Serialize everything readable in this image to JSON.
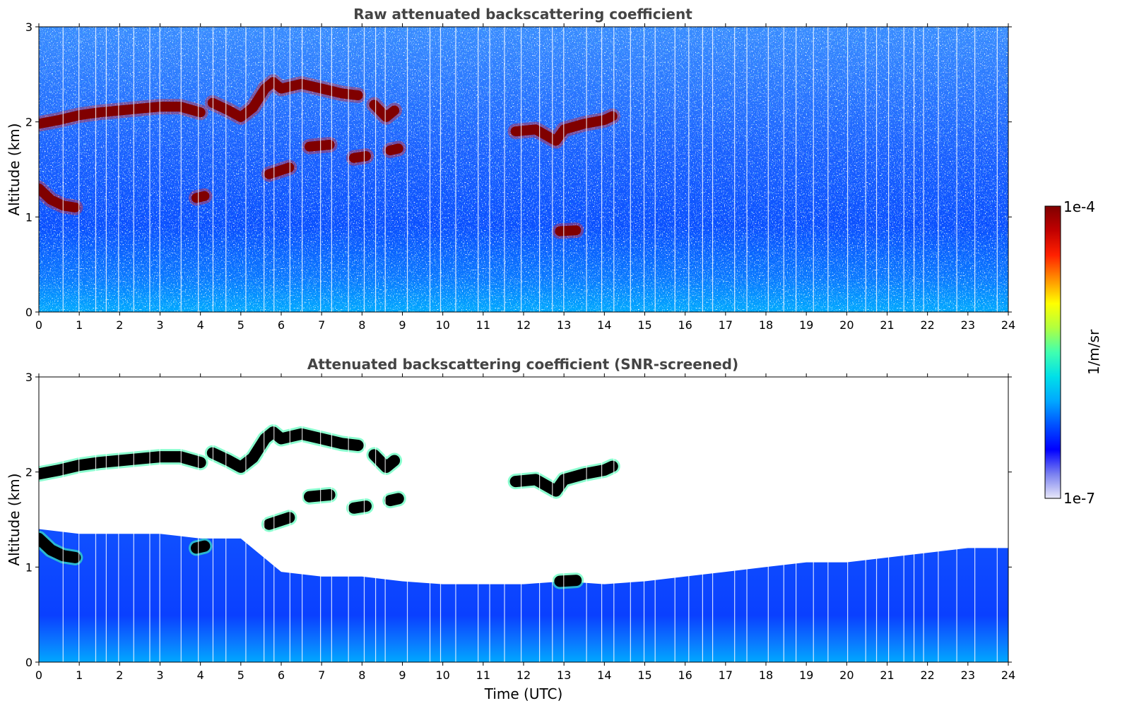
{
  "chart_data": [
    {
      "type": "heatmap",
      "title": "Raw attenuated backscattering coefficient",
      "xlabel": "",
      "ylabel": "Altitude (km)",
      "xlim": [
        0,
        24
      ],
      "ylim": [
        0,
        3
      ],
      "xticks": [
        0,
        1,
        2,
        3,
        4,
        5,
        6,
        7,
        8,
        9,
        10,
        11,
        12,
        13,
        14,
        15,
        16,
        17,
        18,
        19,
        20,
        21,
        22,
        23,
        24
      ],
      "yticks": [
        0,
        1,
        2,
        3
      ],
      "screened": false,
      "cloud_layers": [
        {
          "x": [
            0.0,
            0.5,
            1.0,
            1.5,
            2.0,
            2.5,
            3.0,
            3.5,
            4.0
          ],
          "y": [
            1.98,
            2.02,
            2.07,
            2.1,
            2.12,
            2.14,
            2.16,
            2.16,
            2.1
          ]
        },
        {
          "x": [
            4.3,
            4.7,
            5.0,
            5.3,
            5.6,
            5.8,
            6.0,
            6.5,
            7.0,
            7.5,
            7.9
          ],
          "y": [
            2.2,
            2.12,
            2.05,
            2.15,
            2.35,
            2.42,
            2.35,
            2.4,
            2.35,
            2.3,
            2.28
          ]
        },
        {
          "x": [
            8.3,
            8.6,
            8.8
          ],
          "y": [
            2.18,
            2.05,
            2.12
          ]
        },
        {
          "x": [
            11.8,
            12.3,
            12.8,
            13.0,
            13.5,
            14.0,
            14.2
          ],
          "y": [
            1.9,
            1.92,
            1.8,
            1.92,
            1.98,
            2.02,
            2.06
          ]
        },
        {
          "x": [
            0.0,
            0.3,
            0.6,
            0.9
          ],
          "y": [
            1.3,
            1.18,
            1.12,
            1.1
          ]
        },
        {
          "x": [
            3.9,
            4.1
          ],
          "y": [
            1.2,
            1.22
          ]
        },
        {
          "x": [
            5.7,
            6.2
          ],
          "y": [
            1.45,
            1.52
          ]
        },
        {
          "x": [
            6.7,
            7.2
          ],
          "y": [
            1.74,
            1.76
          ]
        },
        {
          "x": [
            7.8,
            8.1
          ],
          "y": [
            1.62,
            1.64
          ]
        },
        {
          "x": [
            8.7,
            8.9
          ],
          "y": [
            1.7,
            1.72
          ]
        },
        {
          "x": [
            12.9,
            13.3
          ],
          "y": [
            0.85,
            0.86
          ]
        }
      ]
    },
    {
      "type": "heatmap",
      "title": "Attenuated backscattering coefficient (SNR-screened)",
      "xlabel": "Time (UTC)",
      "ylabel": "Altitude (km)",
      "xlim": [
        0,
        24
      ],
      "ylim": [
        0,
        3
      ],
      "xticks": [
        0,
        1,
        2,
        3,
        4,
        5,
        6,
        7,
        8,
        9,
        10,
        11,
        12,
        13,
        14,
        15,
        16,
        17,
        18,
        19,
        20,
        21,
        22,
        23,
        24
      ],
      "yticks": [
        0,
        1,
        2,
        3
      ],
      "screened": true,
      "cloud_layers": [
        {
          "x": [
            0.0,
            0.5,
            1.0,
            1.5,
            2.0,
            2.5,
            3.0,
            3.5,
            4.0
          ],
          "y": [
            1.98,
            2.02,
            2.07,
            2.1,
            2.12,
            2.14,
            2.16,
            2.16,
            2.1
          ]
        },
        {
          "x": [
            4.3,
            4.7,
            5.0,
            5.3,
            5.6,
            5.8,
            6.0,
            6.5,
            7.0,
            7.5,
            7.9
          ],
          "y": [
            2.2,
            2.12,
            2.05,
            2.15,
            2.35,
            2.42,
            2.35,
            2.4,
            2.35,
            2.3,
            2.28
          ]
        },
        {
          "x": [
            8.3,
            8.6,
            8.8
          ],
          "y": [
            2.18,
            2.05,
            2.12
          ]
        },
        {
          "x": [
            11.8,
            12.3,
            12.8,
            13.0,
            13.5,
            14.0,
            14.2
          ],
          "y": [
            1.9,
            1.92,
            1.8,
            1.92,
            1.98,
            2.02,
            2.06
          ]
        },
        {
          "x": [
            0.0,
            0.3,
            0.6,
            0.9
          ],
          "y": [
            1.3,
            1.18,
            1.12,
            1.1
          ]
        },
        {
          "x": [
            3.9,
            4.1
          ],
          "y": [
            1.2,
            1.22
          ]
        },
        {
          "x": [
            5.7,
            6.2
          ],
          "y": [
            1.45,
            1.52
          ]
        },
        {
          "x": [
            6.7,
            7.2
          ],
          "y": [
            1.74,
            1.76
          ]
        },
        {
          "x": [
            7.8,
            8.1
          ],
          "y": [
            1.62,
            1.64
          ]
        },
        {
          "x": [
            8.7,
            8.9
          ],
          "y": [
            1.7,
            1.72
          ]
        },
        {
          "x": [
            12.9,
            13.3
          ],
          "y": [
            0.85,
            0.86
          ]
        }
      ],
      "snr_boundary": {
        "x": [
          0,
          1,
          2,
          3,
          4,
          5,
          6,
          7,
          8,
          9,
          10,
          11,
          12,
          13,
          14,
          15,
          16,
          17,
          18,
          19,
          20,
          21,
          22,
          23,
          24
        ],
        "y": [
          1.4,
          1.35,
          1.35,
          1.35,
          1.3,
          1.3,
          0.95,
          0.9,
          0.9,
          0.85,
          0.82,
          0.82,
          0.82,
          0.85,
          0.82,
          0.85,
          0.9,
          0.95,
          1.0,
          1.05,
          1.05,
          1.1,
          1.15,
          1.2,
          1.2
        ]
      }
    }
  ],
  "colorbar": {
    "label": "1/m/sr",
    "max_label": "1e-4",
    "min_label": "1e-7",
    "scale": "log",
    "range": [
      1e-07,
      0.0001
    ],
    "colormap": [
      "#e8e8f8",
      "#7a80f0",
      "#0000ff",
      "#0050ff",
      "#00a8ff",
      "#00e0e8",
      "#40ffb0",
      "#b0ff40",
      "#ffff00",
      "#ff9000",
      "#ff2000",
      "#c00000",
      "#800000"
    ]
  },
  "colors": {
    "background_noise": "#0a3cff",
    "cloud_core": "#800000",
    "cloud_screened": "#000000",
    "title": "#444444"
  }
}
